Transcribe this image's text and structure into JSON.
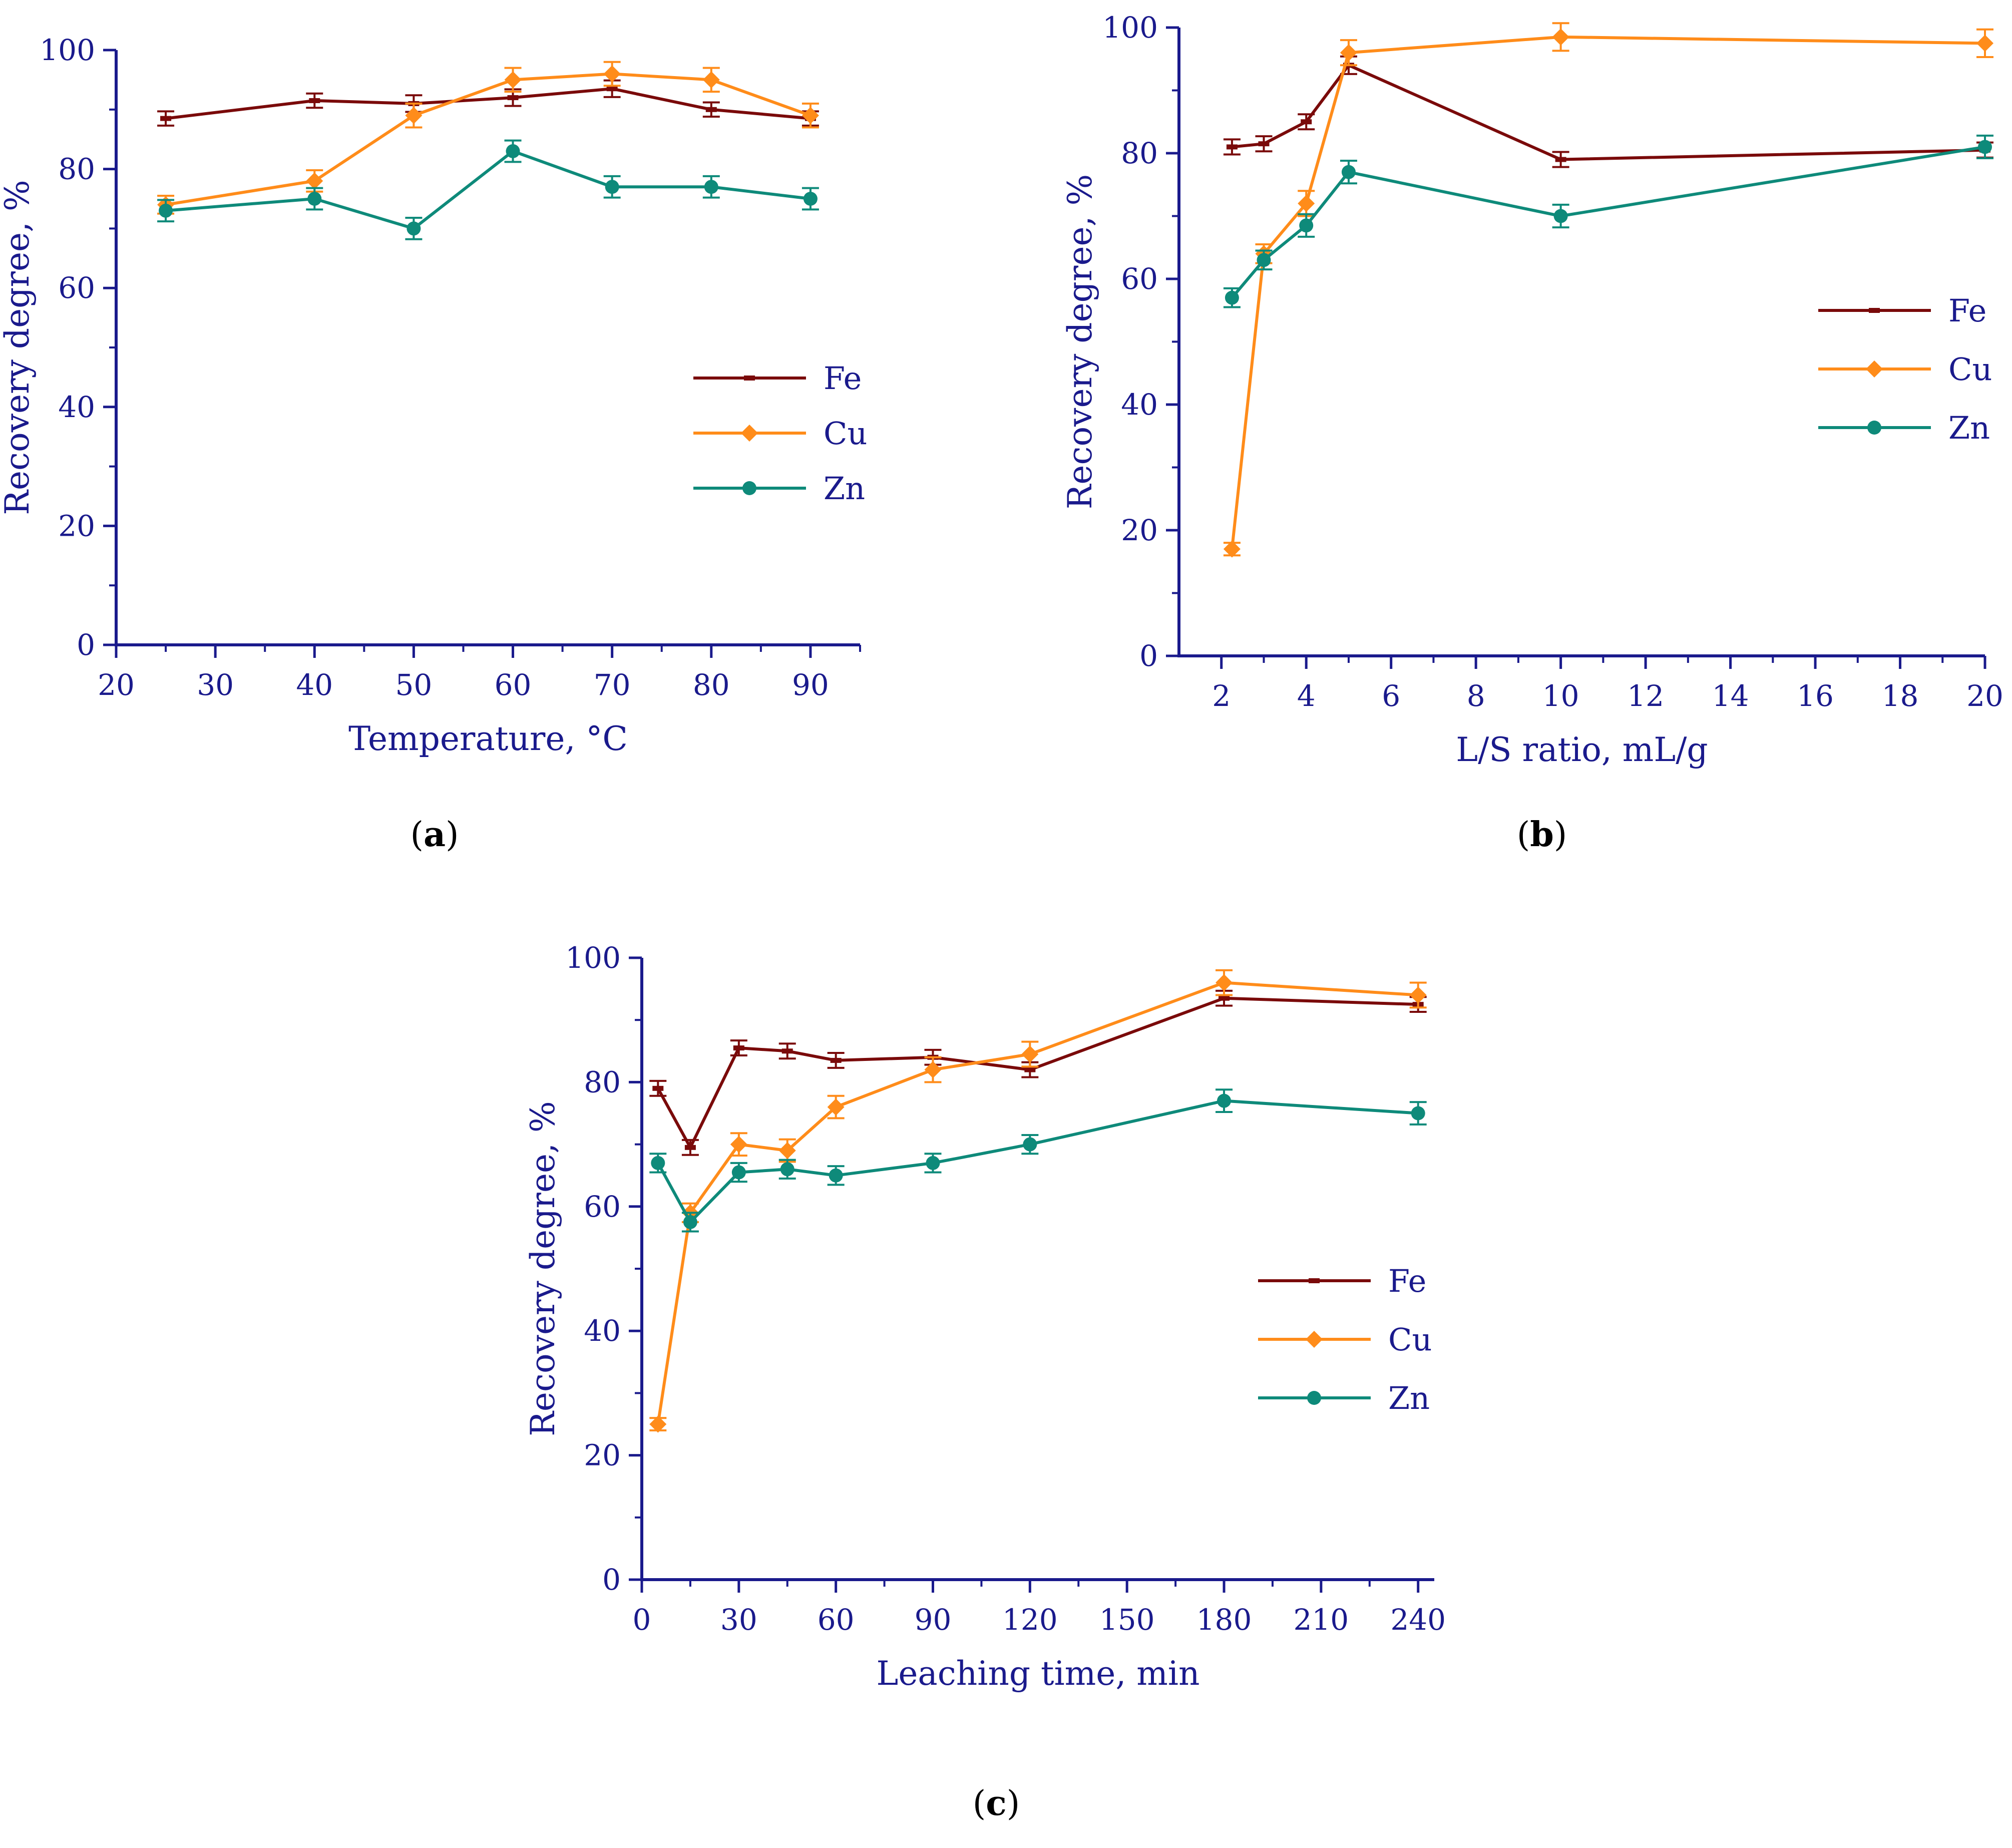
{
  "colors": {
    "axis": "#1a1a8c",
    "Fe": "#7a0a0a",
    "Cu": "#ff8c1a",
    "Zn": "#0e8a7a"
  },
  "chart_data": [
    {
      "type": "line",
      "panel_label": "(a)",
      "panel_letter": "a",
      "xlabel": "Temperature, °C",
      "ylabel": "Recovery degree, %",
      "xlim": [
        20,
        95
      ],
      "ylim": [
        0,
        100
      ],
      "xticks": [
        20,
        30,
        40,
        50,
        60,
        70,
        80,
        90
      ],
      "yticks": [
        0,
        20,
        40,
        60,
        80,
        100
      ],
      "legend_position": "center-right",
      "series": [
        {
          "name": "Fe",
          "marker": "dash",
          "x": [
            25,
            40,
            50,
            60,
            70,
            80,
            90
          ],
          "y": [
            88.5,
            91.5,
            91,
            92,
            93.5,
            90,
            88.5
          ],
          "err": [
            1.2,
            1.2,
            1.4,
            1.4,
            1.4,
            1.2,
            1.2
          ]
        },
        {
          "name": "Cu",
          "marker": "diamond",
          "x": [
            25,
            40,
            50,
            60,
            70,
            80,
            90
          ],
          "y": [
            74,
            78,
            89,
            95,
            96,
            95,
            89
          ],
          "err": [
            1.5,
            1.8,
            2,
            2,
            2,
            2,
            2
          ]
        },
        {
          "name": "Zn",
          "marker": "circle",
          "x": [
            25,
            40,
            50,
            60,
            70,
            80,
            90
          ],
          "y": [
            73,
            75,
            70,
            83,
            77,
            77,
            75
          ],
          "err": [
            1.8,
            1.8,
            1.8,
            1.8,
            1.8,
            1.8,
            1.8
          ]
        }
      ]
    },
    {
      "type": "line",
      "panel_label": "(b)",
      "panel_letter": "b",
      "xlabel": "L/S ratio, mL/g",
      "ylabel": "Recovery degree, %",
      "xlim": [
        1,
        20
      ],
      "ylim": [
        0,
        100
      ],
      "xticks": [
        2,
        4,
        6,
        8,
        10,
        12,
        14,
        16,
        18,
        20
      ],
      "yticks": [
        0,
        20,
        40,
        60,
        80,
        100
      ],
      "legend_position": "center-right",
      "series": [
        {
          "name": "Fe",
          "marker": "dash",
          "x": [
            2.25,
            3,
            4,
            5,
            10,
            20
          ],
          "y": [
            81,
            81.5,
            85,
            94,
            79,
            80.5
          ],
          "err": [
            1.2,
            1.2,
            1.2,
            1.4,
            1.2,
            1.2
          ]
        },
        {
          "name": "Cu",
          "marker": "diamond",
          "x": [
            2.25,
            3,
            4,
            5,
            10,
            20
          ],
          "y": [
            17,
            64,
            72,
            96,
            98.5,
            97.5
          ],
          "err": [
            1,
            1.5,
            2,
            2,
            2.2,
            2.2
          ]
        },
        {
          "name": "Zn",
          "marker": "circle",
          "x": [
            2.25,
            3,
            4,
            5,
            10,
            20
          ],
          "y": [
            57,
            63,
            68.5,
            77,
            70,
            81
          ],
          "err": [
            1.5,
            1.5,
            1.8,
            1.8,
            1.8,
            1.8
          ]
        }
      ]
    },
    {
      "type": "line",
      "panel_label": "(c)",
      "panel_letter": "c",
      "xlabel": "Leaching time, min",
      "ylabel": "Recovery degree, %",
      "xlim": [
        0,
        245
      ],
      "ylim": [
        0,
        100
      ],
      "xticks": [
        0,
        30,
        60,
        90,
        120,
        150,
        180,
        210,
        240
      ],
      "yticks": [
        0,
        20,
        40,
        60,
        80,
        100
      ],
      "legend_position": "center-right",
      "series": [
        {
          "name": "Fe",
          "marker": "dash",
          "x": [
            5,
            15,
            30,
            45,
            60,
            90,
            120,
            180,
            240
          ],
          "y": [
            79,
            69.5,
            85.5,
            85,
            83.5,
            84,
            82,
            93.5,
            92.5
          ],
          "err": [
            1.2,
            1.2,
            1.2,
            1.2,
            1.2,
            1.2,
            1.2,
            1.2,
            1.2
          ]
        },
        {
          "name": "Cu",
          "marker": "diamond",
          "x": [
            5,
            15,
            30,
            45,
            60,
            90,
            120,
            180,
            240
          ],
          "y": [
            25,
            59,
            70,
            69,
            76,
            82,
            84.5,
            96,
            94
          ],
          "err": [
            1,
            1.5,
            1.8,
            1.8,
            1.8,
            2,
            2,
            2,
            2
          ]
        },
        {
          "name": "Zn",
          "marker": "circle",
          "x": [
            5,
            15,
            30,
            45,
            60,
            90,
            120,
            180,
            240
          ],
          "y": [
            67,
            57.5,
            65.5,
            66,
            65,
            67,
            70,
            77,
            75
          ],
          "err": [
            1.5,
            1.5,
            1.5,
            1.5,
            1.5,
            1.5,
            1.5,
            1.8,
            1.8
          ]
        }
      ]
    }
  ]
}
